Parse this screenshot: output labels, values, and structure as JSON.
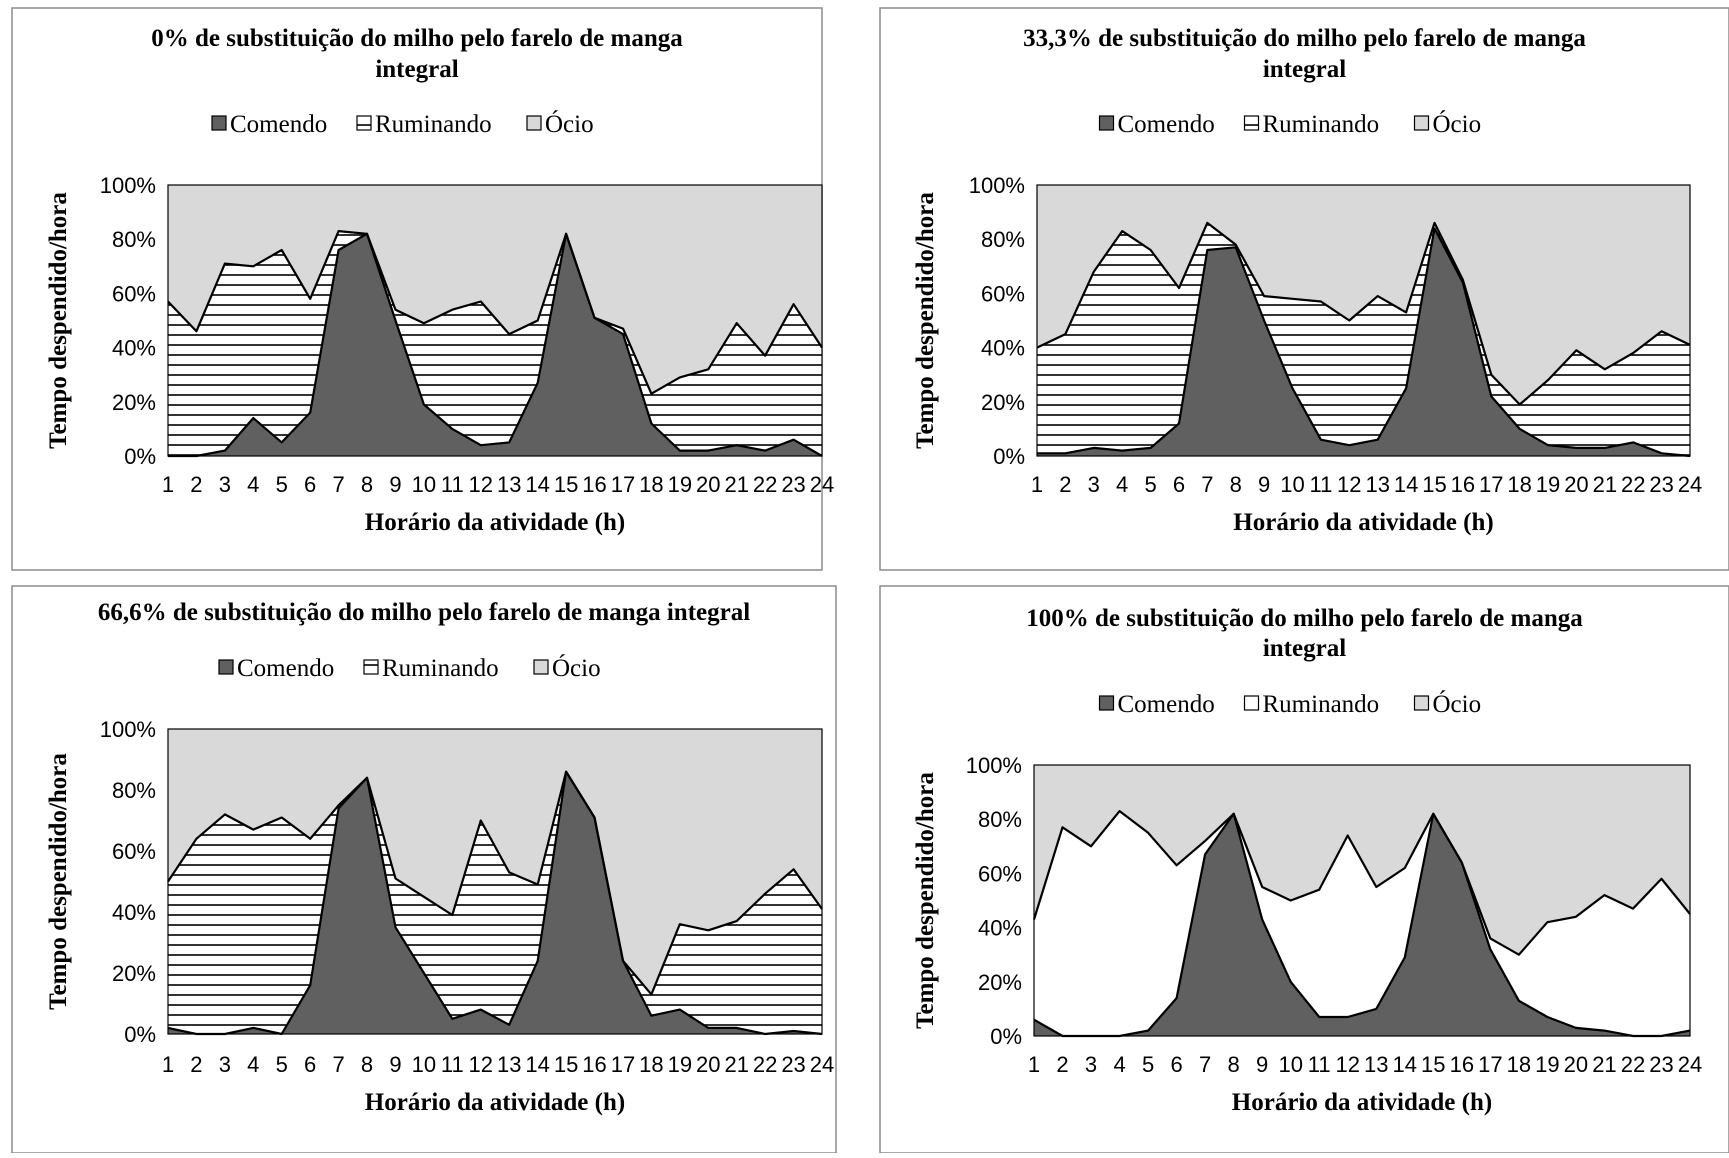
{
  "colors": {
    "comendo": "#606060",
    "ruminando": "#ffffff",
    "ocio": "#d9d9d9",
    "stripe": "#000000",
    "line": "#000000",
    "frame": "#8c8c8c"
  },
  "chart_data": [
    {
      "type": "area",
      "stacked": true,
      "percent": true,
      "title": "0% de substituição do milho pelo farelo de manga integral",
      "title_lines": [
        "0% de substituição do milho pelo farelo de manga",
        "integral"
      ],
      "xlabel": "Horário  da atividade (h)",
      "ylabel": "Tempo despendido/hora",
      "ylim": [
        0,
        100
      ],
      "y_ticks": [
        "0%",
        "20%",
        "40%",
        "60%",
        "80%",
        "100%"
      ],
      "legend_position": "top",
      "legend": [
        {
          "name": "Comendo",
          "pattern": "solid dark gray"
        },
        {
          "name": "Ruminando",
          "pattern": "horizontal stripes"
        },
        {
          "name": "Ócio",
          "pattern": "light gray"
        }
      ],
      "categories": [
        "1",
        "2",
        "3",
        "4",
        "5",
        "6",
        "7",
        "8",
        "9",
        "10",
        "11",
        "12",
        "13",
        "14",
        "15",
        "16",
        "17",
        "18",
        "19",
        "20",
        "21",
        "22",
        "23",
        "24"
      ],
      "series": [
        {
          "name": "Comendo",
          "values": [
            0,
            0,
            2,
            14,
            5,
            16,
            76,
            82,
            50,
            19,
            10,
            4,
            5,
            27,
            82,
            51,
            45,
            12,
            2,
            2,
            4,
            2,
            6,
            0
          ]
        },
        {
          "name": "Ruminando",
          "values": [
            57,
            46,
            69,
            56,
            71,
            42,
            7,
            0,
            4,
            30,
            44,
            53,
            40,
            23,
            0,
            0,
            2,
            11,
            27,
            30,
            45,
            35,
            50,
            40
          ]
        },
        {
          "name": "Ócio",
          "values": [
            43,
            54,
            29,
            30,
            24,
            42,
            17,
            18,
            46,
            51,
            46,
            43,
            55,
            50,
            18,
            49,
            53,
            77,
            71,
            68,
            51,
            63,
            44,
            60
          ]
        }
      ]
    },
    {
      "type": "area",
      "stacked": true,
      "percent": true,
      "title": "33,3% de substituição do milho pelo farelo de manga integral",
      "title_lines": [
        "33,3% de substituição do milho pelo farelo de manga",
        "integral"
      ],
      "xlabel": "Horário da atividade (h)",
      "ylabel": "Tempo despendido/hora",
      "ylim": [
        0,
        100
      ],
      "y_ticks": [
        "0%",
        "20%",
        "40%",
        "60%",
        "80%",
        "100%"
      ],
      "legend_position": "top",
      "legend": [
        {
          "name": "Comendo",
          "pattern": "solid dark gray"
        },
        {
          "name": "Ruminando",
          "pattern": "horizontal stripes"
        },
        {
          "name": "Ócio",
          "pattern": "light gray"
        }
      ],
      "categories": [
        "1",
        "2",
        "3",
        "4",
        "5",
        "6",
        "7",
        "8",
        "9",
        "10",
        "11",
        "12",
        "13",
        "14",
        "15",
        "16",
        "17",
        "18",
        "19",
        "20",
        "21",
        "22",
        "23",
        "24"
      ],
      "series": [
        {
          "name": "Comendo",
          "values": [
            1,
            1,
            3,
            2,
            3,
            12,
            76,
            77,
            50,
            25,
            6,
            4,
            6,
            25,
            84,
            64,
            22,
            10,
            4,
            3,
            3,
            5,
            1,
            0
          ]
        },
        {
          "name": "Ruminando",
          "values": [
            39,
            44,
            65,
            81,
            73,
            50,
            10,
            1,
            9,
            33,
            51,
            46,
            53,
            28,
            2,
            1,
            8,
            9,
            24,
            36,
            29,
            33,
            45,
            41
          ]
        },
        {
          "name": "Ócio",
          "values": [
            60,
            55,
            32,
            17,
            24,
            38,
            14,
            22,
            41,
            42,
            43,
            50,
            41,
            47,
            14,
            35,
            70,
            81,
            72,
            61,
            68,
            62,
            54,
            59
          ]
        }
      ]
    },
    {
      "type": "area",
      "stacked": true,
      "percent": true,
      "title": "66,6% de substituição do milho pelo farelo de manga integral",
      "title_lines": [
        "66,6% de substituição do milho pelo farelo de manga integral"
      ],
      "xlabel": "Horário da atividade (h)",
      "ylabel": "Tempo despendido/hora",
      "ylim": [
        0,
        100
      ],
      "y_ticks": [
        "0%",
        "20%",
        "40%",
        "60%",
        "80%",
        "100%"
      ],
      "legend_position": "top",
      "legend": [
        {
          "name": "Comendo",
          "pattern": "solid dark gray"
        },
        {
          "name": "Ruminando",
          "pattern": "horizontal stripes"
        },
        {
          "name": "Ócio",
          "pattern": "light gray"
        }
      ],
      "categories": [
        "1",
        "2",
        "3",
        "4",
        "5",
        "6",
        "7",
        "8",
        "9",
        "10",
        "11",
        "12",
        "13",
        "14",
        "15",
        "16",
        "17",
        "18",
        "19",
        "20",
        "21",
        "22",
        "23",
        "24"
      ],
      "series": [
        {
          "name": "Comendo",
          "values": [
            2,
            0,
            0,
            2,
            0,
            16,
            74,
            84,
            35,
            20,
            5,
            8,
            3,
            24,
            86,
            71,
            24,
            6,
            8,
            2,
            2,
            0,
            1,
            0
          ]
        },
        {
          "name": "Ruminando",
          "values": [
            48,
            64,
            72,
            65,
            71,
            48,
            1,
            0,
            16,
            25,
            34,
            62,
            50,
            25,
            0,
            0,
            0,
            7,
            28,
            32,
            35,
            46,
            53,
            41
          ]
        },
        {
          "name": "Ócio",
          "values": [
            50,
            36,
            28,
            33,
            29,
            36,
            25,
            16,
            49,
            55,
            61,
            30,
            47,
            51,
            14,
            29,
            76,
            87,
            64,
            66,
            63,
            54,
            46,
            59
          ]
        }
      ]
    },
    {
      "type": "area",
      "stacked": true,
      "percent": true,
      "title": "100% de substituição do milho pelo farelo de manga integral",
      "title_lines": [
        "100% de substituição do milho pelo farelo de manga",
        "integral"
      ],
      "xlabel": "Horário da atividade (h)",
      "ylabel": "Tempo despendido/hora",
      "ylim": [
        0,
        100
      ],
      "y_ticks": [
        "0%",
        "20%",
        "40%",
        "60%",
        "80%",
        "100%"
      ],
      "legend_position": "top",
      "legend": [
        {
          "name": "Comendo",
          "pattern": "solid dark gray"
        },
        {
          "name": "Ruminando",
          "pattern": "white"
        },
        {
          "name": "Ócio",
          "pattern": "light gray"
        }
      ],
      "categories": [
        "1",
        "2",
        "3",
        "4",
        "5",
        "6",
        "7",
        "8",
        "9",
        "10",
        "11",
        "12",
        "13",
        "14",
        "15",
        "16",
        "17",
        "18",
        "19",
        "20",
        "21",
        "22",
        "23",
        "24"
      ],
      "series": [
        {
          "name": "Comendo",
          "values": [
            6,
            0,
            0,
            0,
            2,
            14,
            67,
            82,
            43,
            20,
            7,
            7,
            10,
            29,
            82,
            64,
            32,
            13,
            7,
            3,
            2,
            0,
            0,
            2
          ]
        },
        {
          "name": "Ruminando",
          "values": [
            37,
            77,
            70,
            83,
            73,
            49,
            5,
            0,
            12,
            30,
            47,
            67,
            45,
            33,
            0,
            0,
            4,
            17,
            35,
            41,
            50,
            47,
            58,
            43
          ]
        },
        {
          "name": "Ócio",
          "values": [
            57,
            23,
            30,
            17,
            25,
            37,
            28,
            18,
            45,
            50,
            46,
            26,
            45,
            38,
            18,
            36,
            64,
            70,
            58,
            56,
            48,
            53,
            42,
            55
          ]
        }
      ]
    }
  ]
}
